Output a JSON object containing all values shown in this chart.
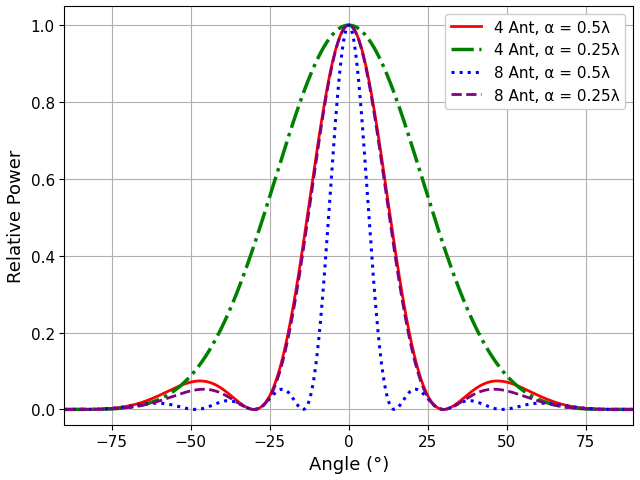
{
  "title": "",
  "xlabel": "Angle (°)",
  "ylabel": "Relative Power",
  "xlim": [
    -90,
    90
  ],
  "ylim": [
    -0.04,
    1.05
  ],
  "xticks": [
    -75,
    -50,
    -25,
    0,
    25,
    50,
    75
  ],
  "yticks": [
    0.0,
    0.2,
    0.4,
    0.6,
    0.8,
    1.0
  ],
  "series": [
    {
      "label": "4 Ant, α = 0.5λ",
      "N": 4,
      "d": 0.5,
      "color": "red",
      "linestyle": "solid",
      "linewidth": 2.0
    },
    {
      "label": "4 Ant, α = 0.25λ",
      "N": 4,
      "d": 0.25,
      "color": "green",
      "linestyle": "dashdot",
      "linewidth": 2.5
    },
    {
      "label": "8 Ant, α = 0.5λ",
      "N": 8,
      "d": 0.5,
      "color": "blue",
      "linestyle": "dotted",
      "linewidth": 2.2
    },
    {
      "label": "8 Ant, α = 0.25λ",
      "N": 8,
      "d": 0.25,
      "color": "purple",
      "linestyle": "dashed",
      "linewidth": 2.0
    }
  ],
  "legend_loc": "upper right",
  "legend_fontsize": 11,
  "grid": true,
  "grid_color": "#b0b0b0",
  "grid_linewidth": 0.8,
  "figsize": [
    6.4,
    4.81
  ],
  "dpi": 100,
  "tick_labelsize": 11,
  "xlabel_fontsize": 13,
  "ylabel_fontsize": 13
}
